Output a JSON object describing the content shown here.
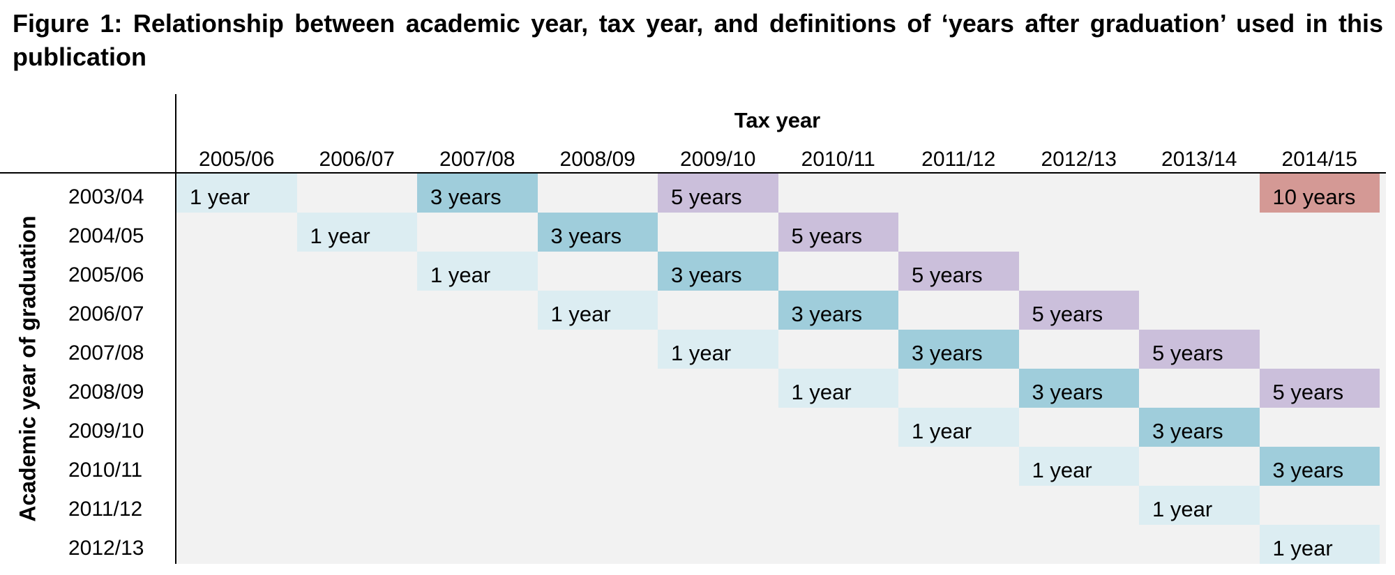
{
  "figure": {
    "title": "Figure 1: Relationship between academic year, tax year, and definitions of ‘years after graduation’ used in this publication",
    "column_axis_label": "Tax year",
    "row_axis_label": "Academic year of graduation"
  },
  "columns": [
    "2005/06",
    "2006/07",
    "2007/08",
    "2008/09",
    "2009/10",
    "2010/11",
    "2011/12",
    "2012/13",
    "2013/14",
    "2014/15"
  ],
  "rows": [
    "2003/04",
    "2004/05",
    "2005/06",
    "2006/07",
    "2007/08",
    "2008/09",
    "2009/10",
    "2010/11",
    "2011/12",
    "2012/13"
  ],
  "category_colors": {
    "1 year": "#dcedf2",
    "3 years": "#9fcddb",
    "5 years": "#cbbfdb",
    "10 years": "#d49995",
    "empty": "#f2f2f2"
  },
  "cells": [
    {
      "row": 0,
      "col": 0,
      "label": "1 year",
      "years": 1
    },
    {
      "row": 0,
      "col": 2,
      "label": "3 years",
      "years": 3
    },
    {
      "row": 0,
      "col": 4,
      "label": "5 years",
      "years": 5
    },
    {
      "row": 0,
      "col": 9,
      "label": "10 years",
      "years": 10
    },
    {
      "row": 1,
      "col": 1,
      "label": "1 year",
      "years": 1
    },
    {
      "row": 1,
      "col": 3,
      "label": "3 years",
      "years": 3
    },
    {
      "row": 1,
      "col": 5,
      "label": "5 years",
      "years": 5
    },
    {
      "row": 2,
      "col": 2,
      "label": "1 year",
      "years": 1
    },
    {
      "row": 2,
      "col": 4,
      "label": "3 years",
      "years": 3
    },
    {
      "row": 2,
      "col": 6,
      "label": "5 years",
      "years": 5
    },
    {
      "row": 3,
      "col": 3,
      "label": "1 year",
      "years": 1
    },
    {
      "row": 3,
      "col": 5,
      "label": "3 years",
      "years": 3
    },
    {
      "row": 3,
      "col": 7,
      "label": "5 years",
      "years": 5
    },
    {
      "row": 4,
      "col": 4,
      "label": "1 year",
      "years": 1
    },
    {
      "row": 4,
      "col": 6,
      "label": "3 years",
      "years": 3
    },
    {
      "row": 4,
      "col": 8,
      "label": "5 years",
      "years": 5
    },
    {
      "row": 5,
      "col": 5,
      "label": "1 year",
      "years": 1
    },
    {
      "row": 5,
      "col": 7,
      "label": "3 years",
      "years": 3
    },
    {
      "row": 5,
      "col": 9,
      "label": "5 years",
      "years": 5
    },
    {
      "row": 6,
      "col": 6,
      "label": "1 year",
      "years": 1
    },
    {
      "row": 6,
      "col": 8,
      "label": "3 years",
      "years": 3
    },
    {
      "row": 7,
      "col": 7,
      "label": "1 year",
      "years": 1
    },
    {
      "row": 7,
      "col": 9,
      "label": "3 years",
      "years": 3
    },
    {
      "row": 8,
      "col": 8,
      "label": "1 year",
      "years": 1
    },
    {
      "row": 9,
      "col": 9,
      "label": "1 year",
      "years": 1
    }
  ]
}
